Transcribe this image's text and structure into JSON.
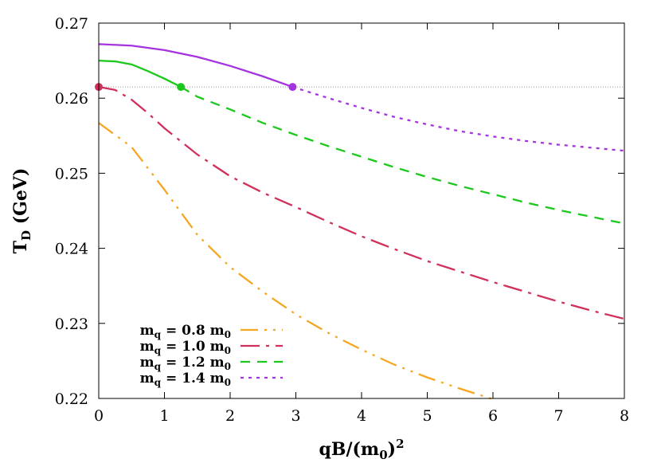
{
  "chart_data": {
    "type": "line",
    "title": "",
    "xlabel": "qB/(m₀)²",
    "xlabel_main": "qB/(m",
    "xlabel_sub": "0",
    "xlabel_close": ")",
    "xlabel_sup": "2",
    "ylabel": "T_D (GeV)",
    "ylabel_main": "T",
    "ylabel_sub": "D",
    "ylabel_unit": " (GeV)",
    "xlim": [
      0,
      8
    ],
    "ylim": [
      0.22,
      0.27
    ],
    "xticks": [
      0,
      1,
      2,
      3,
      4,
      5,
      6,
      7,
      8
    ],
    "xtick_labels": [
      "0",
      "1",
      "2",
      "3",
      "4",
      "5",
      "6",
      "7",
      "8"
    ],
    "yticks": [
      0.22,
      0.23,
      0.24,
      0.25,
      0.26,
      0.27
    ],
    "ytick_labels": [
      "0.22",
      "0.23",
      "0.24",
      "0.25",
      "0.26",
      "0.27"
    ],
    "reference_line": {
      "y": 0.2615,
      "style": "dotted",
      "color": "#999999"
    },
    "legend_position": "bottom-left",
    "series": [
      {
        "name": "m_q = 0.8 m_0",
        "label_main": "m",
        "label_sub": "q",
        "label_rest": " = 0.8 m",
        "label_sub2": "0",
        "color": "#f5a623",
        "dash": "22,8,3,8,3,8",
        "x": [
          0,
          0.5,
          1,
          1.5,
          2,
          2.5,
          3,
          3.5,
          4,
          4.5,
          5,
          5.5,
          6
        ],
        "y": [
          0.2567,
          0.2535,
          0.2478,
          0.2418,
          0.2375,
          0.2342,
          0.2312,
          0.2287,
          0.2265,
          0.2245,
          0.2228,
          0.2213,
          0.2199
        ]
      },
      {
        "name": "m_q = 1.0 m_0",
        "label_main": "m",
        "label_sub": "q",
        "label_rest": " = 1.0 m",
        "label_sub2": "0",
        "color": "#d0305a",
        "dash": "24,8,4,8",
        "x": [
          0,
          0.25,
          0.5,
          0.75,
          1,
          1.5,
          2,
          2.5,
          3,
          3.5,
          4,
          4.5,
          5,
          5.5,
          6,
          6.5,
          7,
          7.5,
          8
        ],
        "y": [
          0.2615,
          0.2611,
          0.2598,
          0.258,
          0.256,
          0.2525,
          0.2496,
          0.2474,
          0.2455,
          0.2435,
          0.2416,
          0.2399,
          0.2383,
          0.2369,
          0.2355,
          0.2342,
          0.2329,
          0.2317,
          0.2306
        ]
      },
      {
        "name": "m_q = 1.2 m_0",
        "label_main": "m",
        "label_sub": "q",
        "label_rest": " = 1.2 m",
        "label_sub2": "0",
        "color": "#1cc81c",
        "dash_start": 1.25,
        "dash": "12,9",
        "x": [
          0,
          0.25,
          0.5,
          0.75,
          1,
          1.25,
          1.5,
          2,
          2.5,
          3,
          3.5,
          4,
          4.5,
          5,
          5.5,
          6,
          6.5,
          7,
          7.5,
          8
        ],
        "y": [
          0.265,
          0.2649,
          0.2645,
          0.2636,
          0.2626,
          0.2615,
          0.2602,
          0.2585,
          0.2567,
          0.2551,
          0.2536,
          0.2522,
          0.2508,
          0.2495,
          0.2483,
          0.2472,
          0.2461,
          0.2451,
          0.2442,
          0.2433
        ]
      },
      {
        "name": "m_q = 1.4 m_0",
        "label_main": "m",
        "label_sub": "q",
        "label_rest": " = 1.4 m",
        "label_sub2": "0",
        "color": "#a533e0",
        "dash_start": 2.95,
        "dash": "4,6",
        "x": [
          0,
          0.5,
          1,
          1.5,
          2,
          2.5,
          2.95,
          3.5,
          4,
          4.5,
          5,
          5.5,
          6,
          6.5,
          7,
          7.5,
          8
        ],
        "y": [
          0.2672,
          0.267,
          0.2664,
          0.2655,
          0.2643,
          0.2629,
          0.2615,
          0.26,
          0.2587,
          0.2575,
          0.2565,
          0.2556,
          0.2549,
          0.2543,
          0.2538,
          0.2534,
          0.253
        ]
      }
    ],
    "markers": [
      {
        "x": 0,
        "y": 0.2615,
        "color": "#d0305a"
      },
      {
        "x": 1.25,
        "y": 0.2615,
        "color": "#1cc81c"
      },
      {
        "x": 2.95,
        "y": 0.2615,
        "color": "#a533e0"
      }
    ]
  }
}
